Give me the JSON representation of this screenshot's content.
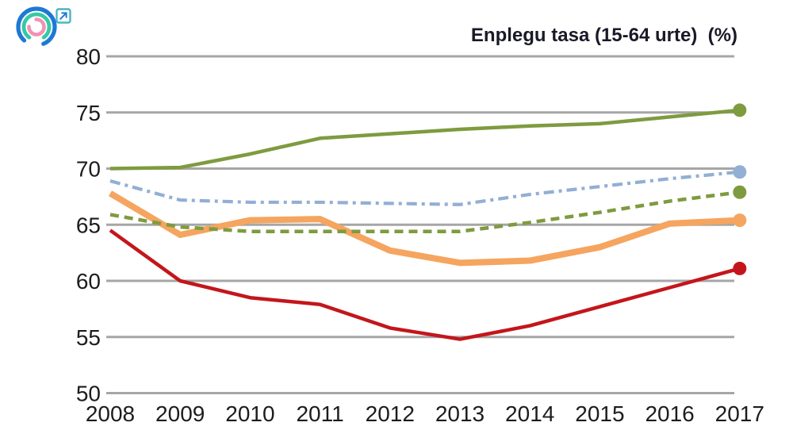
{
  "header": {
    "logo": {
      "rings": [
        {
          "name": "outer-ring",
          "color": "#1d79d4"
        },
        {
          "name": "middle-ring",
          "color": "#36c9a5"
        },
        {
          "name": "inner-ring",
          "color": "#f192b3"
        }
      ]
    },
    "external_link": {
      "symbol": "arrow-up-right",
      "border_color": "#4ab5c6",
      "arrow_color": "#1d79d4"
    }
  },
  "chart_data": {
    "type": "line",
    "title": "Enplegu tasa (15-64 urte)  (%)",
    "xlabel": "",
    "ylabel": "",
    "categories": [
      "2008",
      "2009",
      "2010",
      "2011",
      "2012",
      "2013",
      "2014",
      "2015",
      "2016",
      "2017"
    ],
    "yticks": [
      80,
      75,
      70,
      65,
      60,
      55,
      50
    ],
    "ylim": [
      50,
      80
    ],
    "grid": true,
    "grid_color": "#a6a6a6",
    "text_color": "#1c1c1c",
    "legend": "none",
    "series": [
      {
        "name": "orange-solid",
        "color": "#f5a55f",
        "style": "solid",
        "width": 8,
        "end_dot": true,
        "values": [
          67.8,
          64.1,
          65.4,
          65.5,
          62.7,
          61.6,
          61.8,
          63.0,
          65.1,
          65.4
        ]
      },
      {
        "name": "green-solid",
        "color": "#7e9b3f",
        "style": "solid",
        "width": 4.5,
        "end_dot": true,
        "values": [
          70.0,
          70.1,
          71.3,
          72.7,
          73.1,
          73.5,
          73.8,
          74.0,
          74.6,
          75.2
        ]
      },
      {
        "name": "blue-dash-dot",
        "color": "#92afd4",
        "style": "dash-dot",
        "width": 4.2,
        "end_dot": true,
        "values": [
          68.9,
          67.2,
          67.0,
          67.0,
          66.9,
          66.8,
          67.7,
          68.4,
          69.1,
          69.7
        ]
      },
      {
        "name": "green-dashed",
        "color": "#7e9b3f",
        "style": "dashed",
        "width": 4.5,
        "end_dot": true,
        "values": [
          65.9,
          64.8,
          64.4,
          64.4,
          64.4,
          64.4,
          65.2,
          66.1,
          67.1,
          67.9
        ]
      },
      {
        "name": "red-solid",
        "color": "#c3161c",
        "style": "solid",
        "width": 4.5,
        "end_dot": true,
        "values": [
          64.5,
          60.0,
          58.5,
          57.9,
          55.8,
          54.8,
          56.0,
          57.7,
          59.4,
          61.1
        ]
      }
    ]
  }
}
